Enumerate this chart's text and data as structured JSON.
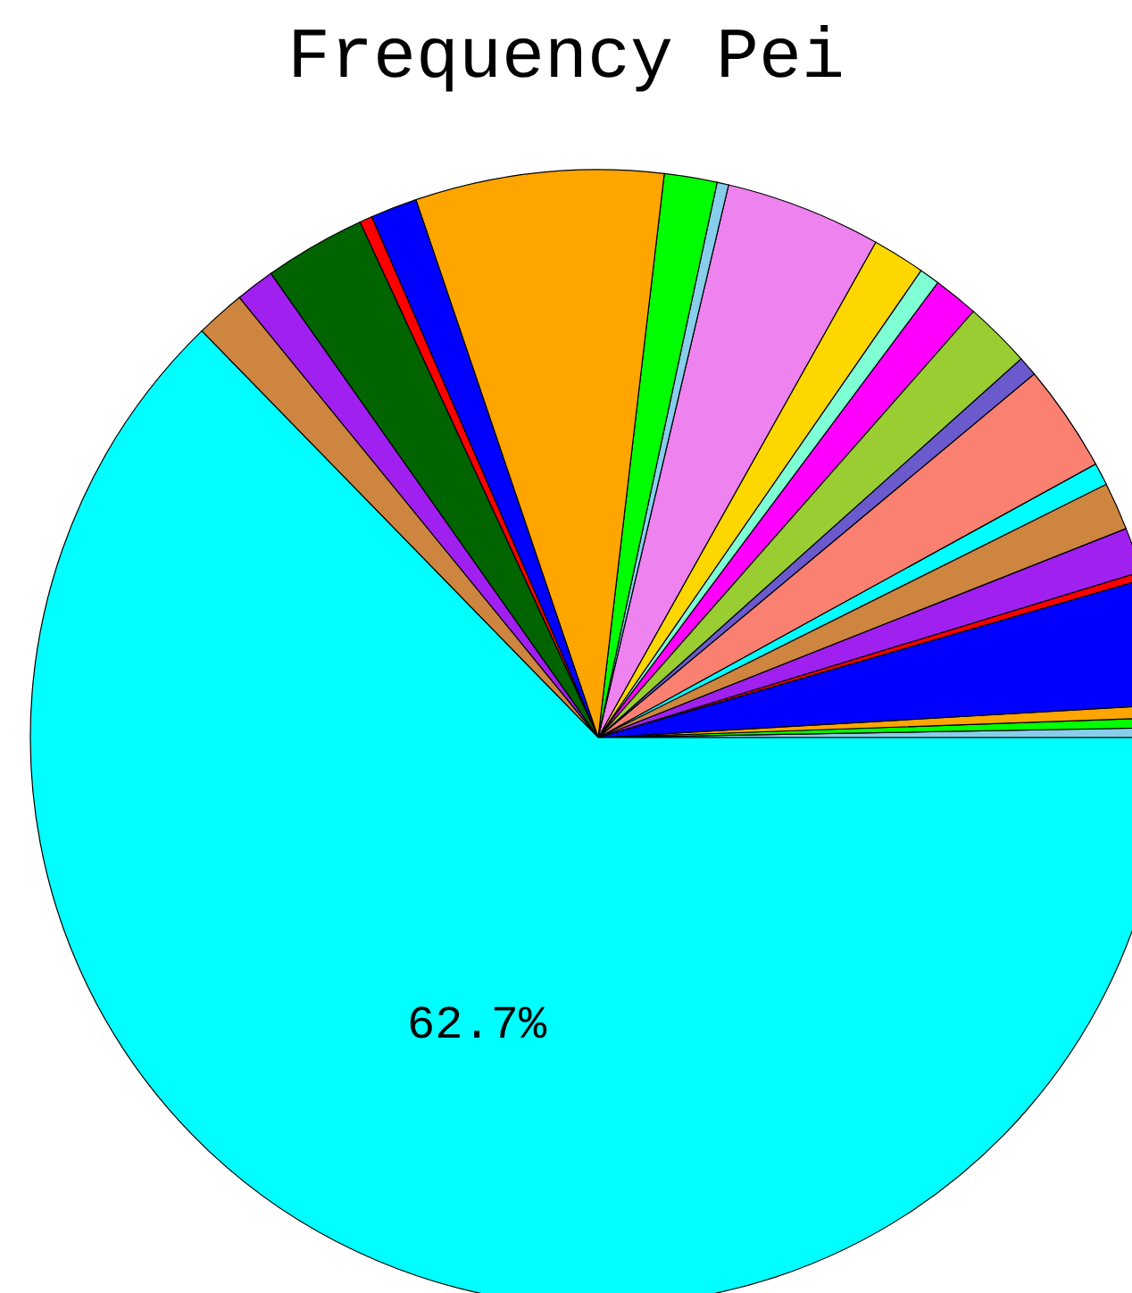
{
  "chart_data": {
    "type": "pie",
    "title": "Frequency Pei",
    "categories": [
      null,
      null,
      null,
      null,
      null,
      null,
      null,
      null,
      null,
      null,
      null,
      null,
      null,
      null,
      null,
      null,
      null,
      null,
      null,
      null,
      null,
      null,
      null,
      null
    ],
    "values": [
      0.28,
      0.28,
      0.36,
      3.58,
      0.22,
      1.28,
      1.36,
      0.64,
      3.06,
      0.56,
      1.89,
      1.28,
      0.58,
      1.5,
      4.44,
      0.33,
      1.5,
      7.06,
      1.33,
      0.36,
      2.89,
      1.11,
      1.41,
      62.7
    ],
    "colors": [
      "#87ceeb",
      "#00ff00",
      "#ffa500",
      "#0000ff",
      "#ff0000",
      "#a020f0",
      "#cd853f",
      "#00ffff",
      "#fa8072",
      "#6a5acd",
      "#9acd32",
      "#ff00ff",
      "#7fffd4",
      "#ffd700",
      "#ee82ee",
      "#87ceeb",
      "#00ff00",
      "#ffa500",
      "#0000ff",
      "#ff0000",
      "#006400",
      "#a020f0",
      "#cd853f",
      "#00ffff"
    ],
    "value_labels": [
      null,
      null,
      null,
      null,
      null,
      null,
      null,
      null,
      null,
      null,
      null,
      null,
      null,
      null,
      null,
      null,
      null,
      null,
      null,
      null,
      null,
      null,
      null,
      "62.7%"
    ]
  }
}
